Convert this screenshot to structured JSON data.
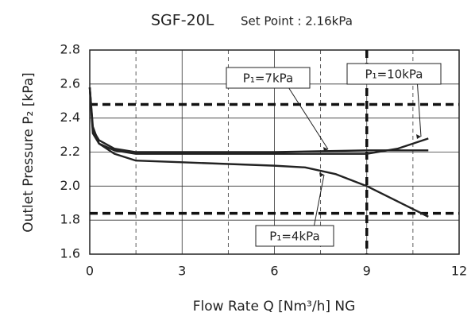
{
  "chart_data": {
    "type": "line",
    "title": "SGF-20L",
    "subtitle": "Set Point : 2.16kPa",
    "xlabel": "Flow Rate Q [Nm³/h] NG",
    "ylabel": "Outlet Pressure P₂ [kPa]",
    "xlim": [
      0,
      12
    ],
    "xticks": [
      0,
      3,
      6,
      9,
      12
    ],
    "xminor": [
      1.5,
      4.5,
      7.5,
      10.5
    ],
    "ylim": [
      1.6,
      2.8
    ],
    "yticks": [
      {
        "value": 2.8,
        "label": "2.8"
      },
      2.6,
      2.4,
      2.2,
      {
        "value": 2,
        "label": "2.0"
      },
      1.8,
      1.6
    ],
    "grid": true,
    "reference_lines": {
      "y": [
        2.48,
        1.84
      ],
      "x": [
        9
      ]
    },
    "series": [
      {
        "name": "P₁=7kPa",
        "color": "#222222",
        "x": [
          0,
          0.1,
          0.3,
          0.8,
          1.5,
          3,
          6,
          9,
          11
        ],
        "values": [
          2.58,
          2.33,
          2.27,
          2.22,
          2.2,
          2.2,
          2.2,
          2.21,
          2.21
        ]
      },
      {
        "name": "P₁=10kPa",
        "color": "#222222",
        "x": [
          0,
          0.1,
          0.3,
          0.8,
          1.5,
          3,
          6,
          9,
          10,
          11
        ],
        "values": [
          2.58,
          2.31,
          2.25,
          2.21,
          2.19,
          2.19,
          2.19,
          2.19,
          2.22,
          2.28
        ]
      },
      {
        "name": "P₁=4kPa",
        "color": "#222222",
        "x": [
          0,
          0.1,
          0.3,
          0.8,
          1.5,
          3,
          6,
          7,
          8,
          9,
          10,
          11
        ],
        "values": [
          2.58,
          2.35,
          2.25,
          2.19,
          2.15,
          2.14,
          2.12,
          2.11,
          2.07,
          2.0,
          1.91,
          1.82
        ]
      }
    ]
  }
}
